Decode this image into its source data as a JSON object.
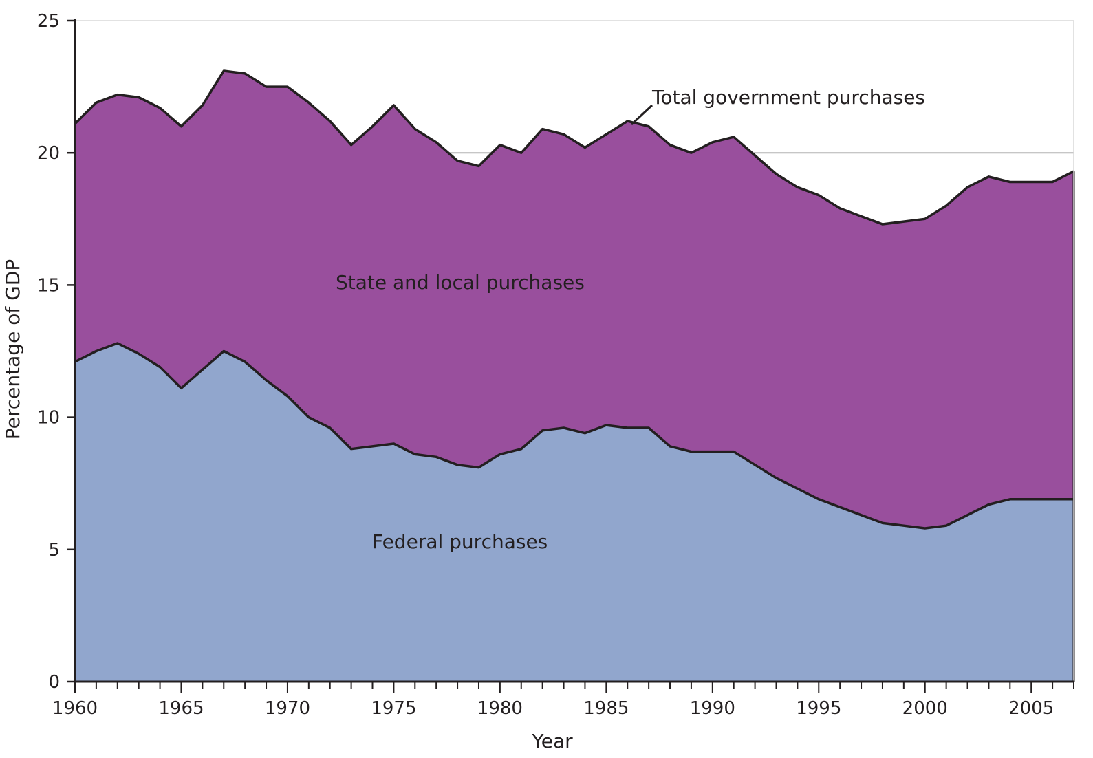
{
  "chart_data": {
    "type": "area",
    "stacked": true,
    "xlabel": "Year",
    "ylabel": "Percentage of GDP",
    "xlim": [
      1960,
      2007
    ],
    "ylim": [
      0,
      25
    ],
    "x_ticks": [
      1960,
      1965,
      1970,
      1975,
      1980,
      1985,
      1990,
      1995,
      2000,
      2005
    ],
    "y_ticks": [
      0,
      5,
      10,
      15,
      20,
      25
    ],
    "gridlines": [
      20
    ],
    "x": [
      1960,
      1961,
      1962,
      1963,
      1964,
      1965,
      1966,
      1967,
      1968,
      1969,
      1970,
      1971,
      1972,
      1973,
      1974,
      1975,
      1976,
      1977,
      1978,
      1979,
      1980,
      1981,
      1982,
      1983,
      1984,
      1985,
      1986,
      1987,
      1988,
      1989,
      1990,
      1991,
      1992,
      1993,
      1994,
      1995,
      1996,
      1997,
      1998,
      1999,
      2000,
      2001,
      2002,
      2003,
      2004,
      2005,
      2006,
      2007
    ],
    "series": [
      {
        "name": "Federal purchases",
        "values": [
          12.1,
          12.5,
          12.8,
          12.4,
          11.9,
          11.1,
          11.8,
          12.5,
          12.1,
          11.4,
          10.8,
          10.0,
          9.6,
          8.8,
          8.9,
          9.0,
          8.6,
          8.5,
          8.2,
          8.1,
          8.6,
          8.8,
          9.5,
          9.6,
          9.4,
          9.7,
          9.6,
          9.6,
          8.9,
          8.7,
          8.7,
          8.7,
          8.2,
          7.7,
          7.3,
          6.9,
          6.6,
          6.3,
          6.0,
          5.9,
          5.8,
          5.9,
          6.3,
          6.7,
          6.9,
          6.9,
          6.9,
          6.9
        ]
      },
      {
        "name": "State and local purchases",
        "values": [
          9.0,
          9.4,
          9.4,
          9.7,
          9.8,
          9.9,
          10.0,
          10.6,
          10.9,
          11.1,
          11.7,
          11.9,
          11.6,
          11.5,
          12.1,
          12.8,
          12.3,
          11.9,
          11.5,
          11.4,
          11.7,
          11.2,
          11.4,
          11.1,
          10.8,
          11.0,
          11.6,
          11.4,
          11.4,
          11.3,
          11.7,
          11.9,
          11.7,
          11.5,
          11.4,
          11.5,
          11.3,
          11.3,
          11.3,
          11.5,
          11.7,
          12.1,
          12.4,
          12.4,
          12.0,
          12.0,
          12.0,
          12.4
        ]
      }
    ],
    "total": {
      "name": "Total government purchases",
      "values": [
        21.1,
        21.9,
        22.2,
        22.1,
        21.7,
        21.0,
        21.8,
        23.1,
        23.0,
        22.5,
        22.5,
        21.9,
        21.2,
        20.3,
        21.0,
        21.8,
        20.9,
        20.4,
        19.7,
        19.5,
        20.3,
        20.0,
        20.9,
        20.7,
        20.2,
        20.7,
        21.2,
        21.0,
        20.3,
        20.0,
        20.4,
        20.6,
        19.9,
        19.2,
        18.7,
        18.4,
        17.9,
        17.6,
        17.3,
        17.4,
        17.5,
        18.0,
        18.7,
        19.1,
        18.9,
        18.9,
        18.9,
        19.3
      ]
    },
    "colors": {
      "federal": "#91a6cd",
      "state_local": "#994f9d",
      "outline": "#231f20",
      "grid": "#b3b3b3"
    },
    "labels": {
      "federal": "Federal purchases",
      "state_local": "State and local purchases",
      "total": "Total government purchases"
    }
  }
}
